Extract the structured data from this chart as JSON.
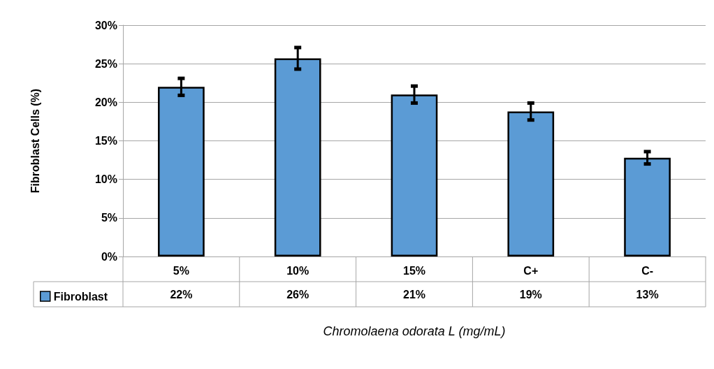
{
  "chart_data": {
    "type": "bar",
    "ylabel": "Fibroblast Cells (%)",
    "xlabel": "Chromolaena odorata L (mg/mL)",
    "categories": [
      "5%",
      "10%",
      "15%",
      "C+",
      "C-"
    ],
    "series": [
      {
        "name": "Fibroblast",
        "color": "#5b9bd5",
        "values": [
          22.0,
          25.7,
          21.0,
          18.8,
          12.8
        ],
        "errors": [
          1.1,
          1.4,
          1.1,
          1.1,
          0.8
        ],
        "value_labels": [
          "22%",
          "26%",
          "21%",
          "19%",
          "13%"
        ]
      }
    ],
    "ylim": [
      0,
      30
    ],
    "yticks": [
      {
        "value": 0,
        "label": "0%"
      },
      {
        "value": 5,
        "label": "5%"
      },
      {
        "value": 10,
        "label": "10%"
      },
      {
        "value": 15,
        "label": "15%"
      },
      {
        "value": 20,
        "label": "20%"
      },
      {
        "value": 25,
        "label": "25%"
      },
      {
        "value": 30,
        "label": "30%"
      }
    ],
    "grid": "y",
    "legend": "bottom left"
  }
}
